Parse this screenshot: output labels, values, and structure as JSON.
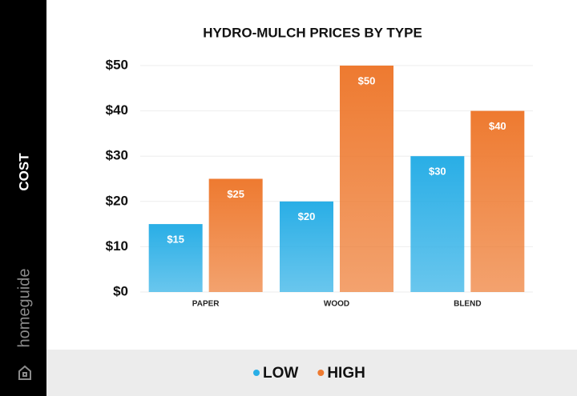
{
  "chart_data": {
    "type": "bar",
    "title": "HYDRO-MULCH PRICES BY TYPE",
    "y_label": "COST",
    "brand": "homeguide",
    "categories": [
      "PAPER",
      "WOOD",
      "BLEND"
    ],
    "series": [
      {
        "name": "LOW",
        "color": "#29aee6",
        "values": [
          15,
          20,
          30
        ],
        "value_labels": [
          "$15",
          "$20",
          "$30"
        ]
      },
      {
        "name": "HIGH",
        "color": "#ee7a30",
        "values": [
          25,
          50,
          40
        ],
        "value_labels": [
          "$25",
          "$50",
          "$40"
        ]
      }
    ],
    "ylim": [
      0,
      50
    ],
    "yticks": [
      {
        "value": 0,
        "label": "$0"
      },
      {
        "value": 10,
        "label": "$10"
      },
      {
        "value": 20,
        "label": "$20"
      },
      {
        "value": 30,
        "label": "$30"
      },
      {
        "value": 40,
        "label": "$40"
      },
      {
        "value": 50,
        "label": "$50"
      }
    ],
    "grid": true
  }
}
